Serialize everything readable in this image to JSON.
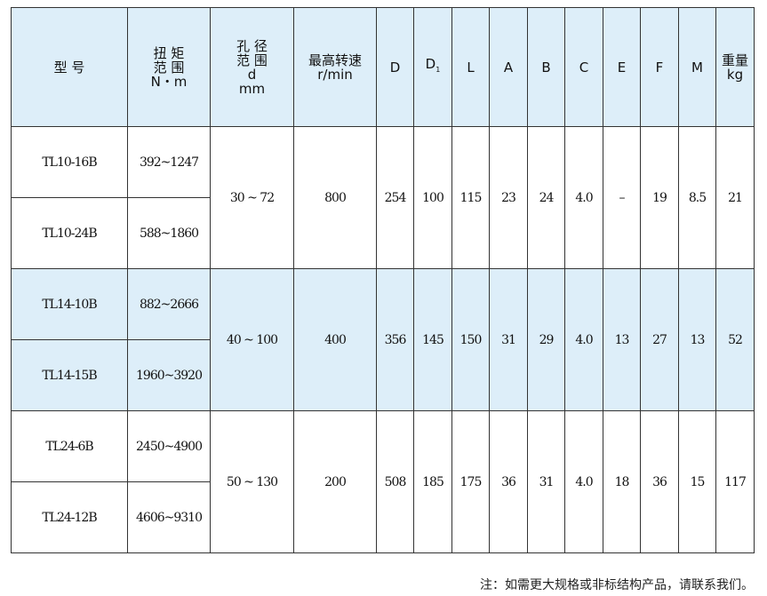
{
  "headers": [
    "型 号",
    "扭 矩\n范 围\nN・m",
    "孔 径\n范 围\nd\nmm",
    "最高转速\nr/min",
    "D",
    "D",
    "L",
    "A",
    "B",
    "C",
    "E",
    "F",
    "M",
    "重量\nkg"
  ],
  "d1_sub": "1",
  "groups": [
    {
      "rows": [
        {
          "model": "TL10-16B",
          "torque": "392~1247"
        },
        {
          "model": "TL10-24B",
          "torque": "588~1860"
        }
      ],
      "bore": "30 ~ 72",
      "speed": "800",
      "D": "254",
      "D1": "100",
      "L": "115",
      "A": "23",
      "B": "24",
      "C": "4.0",
      "E": "–",
      "F": "19",
      "M": "8.5",
      "weight": "21"
    },
    {
      "rows": [
        {
          "model": "TL14-10B",
          "torque": "882~2666"
        },
        {
          "model": "TL14-15B",
          "torque": "1960~3920"
        }
      ],
      "bore": "40 ~ 100",
      "speed": "400",
      "D": "356",
      "D1": "145",
      "L": "150",
      "A": "31",
      "B": "29",
      "C": "4.0",
      "E": "13",
      "F": "27",
      "M": "13",
      "weight": "52"
    },
    {
      "rows": [
        {
          "model": "TL24-6B",
          "torque": "2450~4900"
        },
        {
          "model": "TL24-12B",
          "torque": "4606~9310"
        }
      ],
      "bore": "50 ~ 130",
      "speed": "200",
      "D": "508",
      "D1": "185",
      "L": "175",
      "A": "36",
      "B": "31",
      "C": "4.0",
      "E": "18",
      "F": "36",
      "M": "15",
      "weight": "117"
    }
  ],
  "note": "注：如需更大规格或非标结构产品，请联系我们。",
  "colors": {
    "header_bg": "#ddeef9",
    "band_bg": "#ddeef9"
  }
}
